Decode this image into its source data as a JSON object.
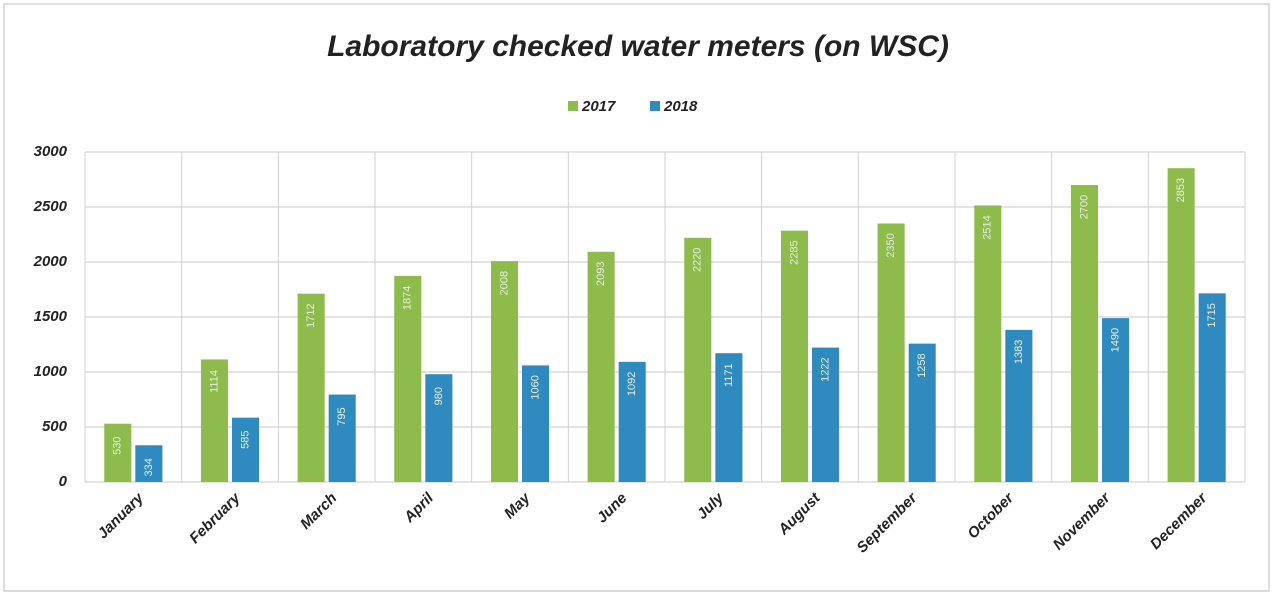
{
  "chart_data": {
    "type": "bar",
    "title": "Laboratory checked water meters (on WSC)",
    "categories": [
      "January",
      "February",
      "March",
      "April",
      "May",
      "June",
      "July",
      "August",
      "September",
      "October",
      "November",
      "December"
    ],
    "series": [
      {
        "name": "2017",
        "color": "#8dbb4c",
        "values": [
          530,
          1114,
          1712,
          1874,
          2008,
          2093,
          2220,
          2285,
          2350,
          2514,
          2700,
          2853
        ]
      },
      {
        "name": "2018",
        "color": "#2f8bbf",
        "values": [
          334,
          585,
          795,
          980,
          1060,
          1092,
          1171,
          1222,
          1258,
          1383,
          1490,
          1715
        ]
      }
    ],
    "ylim": [
      0,
      3000
    ],
    "yticks": [
      0,
      500,
      1000,
      1500,
      2000,
      2500,
      3000
    ],
    "grid": true,
    "legend": "top"
  }
}
